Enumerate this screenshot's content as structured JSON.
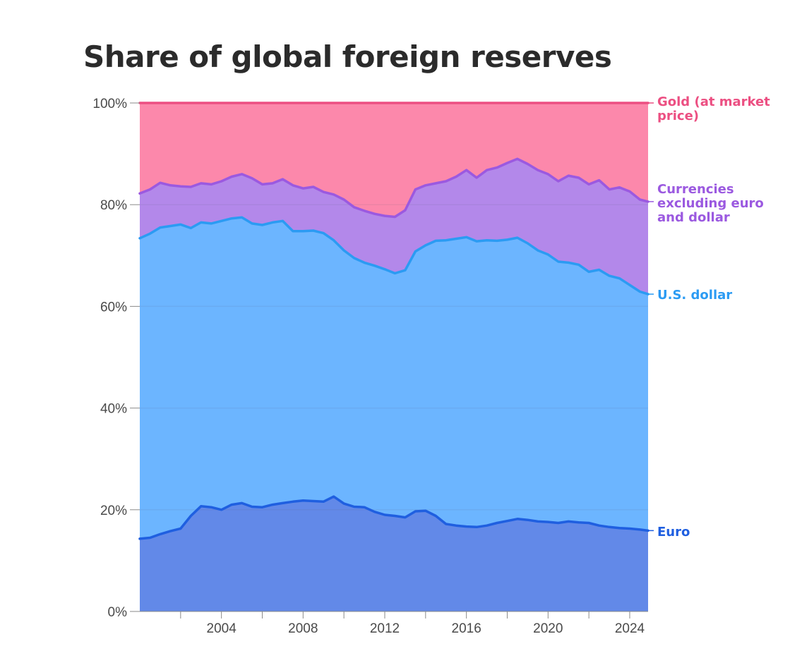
{
  "chart_data": {
    "type": "area",
    "stacked": true,
    "title": "Share of global foreign reserves",
    "xlabel": "",
    "ylabel": "",
    "xlim": [
      2000.0,
      2024.9
    ],
    "ylim": [
      0,
      100
    ],
    "grid": true,
    "legend": "right",
    "y_ticks": [
      {
        "value": 0,
        "label": "0%"
      },
      {
        "value": 20,
        "label": "20%"
      },
      {
        "value": 40,
        "label": "40%"
      },
      {
        "value": 60,
        "label": "60%"
      },
      {
        "value": 80,
        "label": "80%"
      },
      {
        "value": 100,
        "label": "100%"
      }
    ],
    "x_ticks": [
      {
        "value": 2004,
        "label": "2004"
      },
      {
        "value": 2008,
        "label": "2008"
      },
      {
        "value": 2012,
        "label": "2012"
      },
      {
        "value": 2016,
        "label": "2016"
      },
      {
        "value": 2020,
        "label": "2020"
      },
      {
        "value": 2024,
        "label": "2024"
      }
    ],
    "x_minor_ticks": [
      2002,
      2006,
      2010,
      2014,
      2018,
      2022
    ],
    "x": [
      2000.0,
      2000.5,
      2001.0,
      2001.5,
      2002.0,
      2002.5,
      2003.0,
      2003.5,
      2004.0,
      2004.5,
      2005.0,
      2005.5,
      2006.0,
      2006.5,
      2007.0,
      2007.5,
      2008.0,
      2008.5,
      2009.0,
      2009.5,
      2010.0,
      2010.5,
      2011.0,
      2011.5,
      2012.0,
      2012.5,
      2013.0,
      2013.5,
      2014.0,
      2014.5,
      2015.0,
      2015.5,
      2016.0,
      2016.5,
      2017.0,
      2017.5,
      2018.0,
      2018.5,
      2019.0,
      2019.5,
      2020.0,
      2020.5,
      2021.0,
      2021.5,
      2022.0,
      2022.5,
      2023.0,
      2023.5,
      2024.0,
      2024.5,
      2024.9
    ],
    "series": [
      {
        "name": "Euro",
        "label": "Euro",
        "fill": "#6289e8",
        "line": "#1f5fe0",
        "values": [
          14.3,
          14.5,
          15.2,
          15.8,
          16.3,
          18.8,
          20.7,
          20.5,
          20.0,
          21.0,
          21.3,
          20.6,
          20.5,
          21.0,
          21.3,
          21.6,
          21.8,
          21.7,
          21.6,
          22.6,
          21.2,
          20.6,
          20.5,
          19.6,
          19.0,
          18.8,
          18.5,
          19.7,
          19.8,
          18.8,
          17.2,
          16.9,
          16.7,
          16.6,
          16.9,
          17.4,
          17.8,
          18.2,
          18.0,
          17.7,
          17.6,
          17.4,
          17.7,
          17.5,
          17.4,
          16.9,
          16.6,
          16.4,
          16.3,
          16.1,
          15.9
        ]
      },
      {
        "name": "U.S. dollar",
        "label": "U.S. dollar",
        "fill": "#6cb5ff",
        "line": "#2b9bf3",
        "values": [
          73.4,
          74.3,
          75.5,
          75.8,
          76.1,
          75.4,
          76.5,
          76.3,
          76.8,
          77.3,
          77.5,
          76.3,
          76.0,
          76.5,
          76.8,
          74.8,
          74.8,
          74.9,
          74.4,
          73.0,
          71.0,
          69.5,
          68.6,
          68.0,
          67.3,
          66.5,
          67.1,
          70.8,
          72.0,
          72.9,
          73.0,
          73.3,
          73.6,
          72.8,
          73.0,
          72.9,
          73.1,
          73.5,
          72.4,
          71.0,
          70.2,
          68.8,
          68.6,
          68.2,
          66.8,
          67.2,
          66.0,
          65.5,
          64.2,
          62.9,
          62.4
        ]
      },
      {
        "name": "Currencies excluding euro and dollar",
        "label_lines": [
          "Currencies",
          "excluding euro",
          "and dollar"
        ],
        "fill": "#b388ea",
        "line": "#9b59e0",
        "values": [
          82.2,
          83.0,
          84.3,
          83.8,
          83.6,
          83.5,
          84.2,
          84.0,
          84.6,
          85.5,
          86.0,
          85.2,
          84.0,
          84.2,
          85.0,
          83.8,
          83.2,
          83.5,
          82.5,
          82.0,
          81.0,
          79.5,
          78.8,
          78.2,
          77.8,
          77.6,
          78.9,
          83.0,
          83.8,
          84.2,
          84.6,
          85.5,
          86.8,
          85.3,
          86.8,
          87.3,
          88.2,
          89.0,
          88.0,
          86.8,
          86.0,
          84.6,
          85.7,
          85.3,
          84.0,
          84.8,
          83.0,
          83.4,
          82.6,
          81.0,
          80.6
        ]
      },
      {
        "name": "Gold (at market price)",
        "label_lines": [
          "Gold (at market",
          "price)"
        ],
        "fill": "#fc88ab",
        "line": "#ec4f82",
        "values": [
          100,
          100,
          100,
          100,
          100,
          100,
          100,
          100,
          100,
          100,
          100,
          100,
          100,
          100,
          100,
          100,
          100,
          100,
          100,
          100,
          100,
          100,
          100,
          100,
          100,
          100,
          100,
          100,
          100,
          100,
          100,
          100,
          100,
          100,
          100,
          100,
          100,
          100,
          100,
          100,
          100,
          100,
          100,
          100,
          100,
          100,
          100,
          100,
          100,
          100,
          100
        ]
      }
    ]
  }
}
